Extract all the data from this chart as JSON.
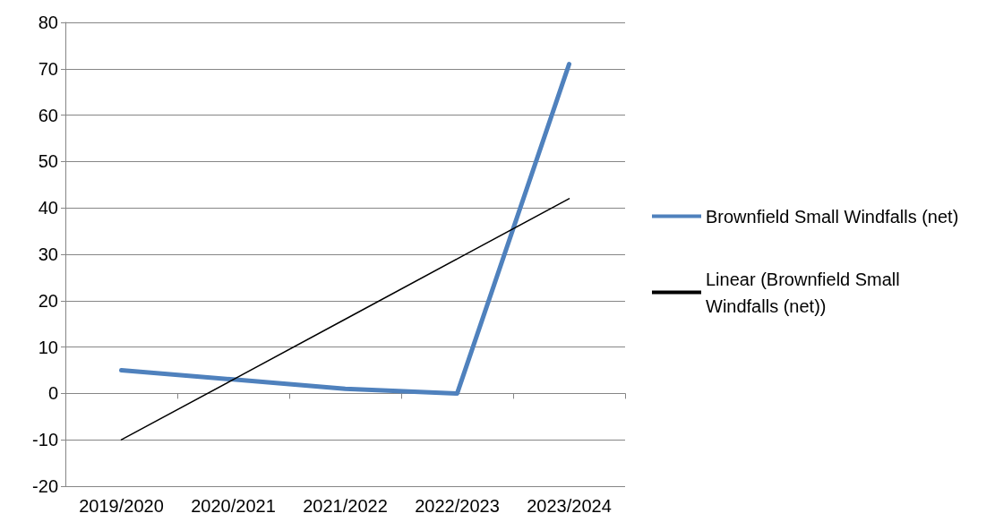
{
  "chart_data": {
    "type": "line",
    "categories": [
      "2019/2020",
      "2020/2021",
      "2021/2022",
      "2022/2023",
      "2023/2024"
    ],
    "series": [
      {
        "name": "Brownfield Small Windfalls (net)",
        "color": "#4f81bd",
        "values": [
          5,
          3,
          1,
          0,
          71
        ]
      },
      {
        "name": "Linear (Brownfield Small Windfalls (net))",
        "color": "#000000",
        "values": [
          -10,
          3,
          16,
          29,
          42
        ]
      }
    ],
    "ylim": [
      -20,
      80
    ],
    "yticks": [
      -20,
      -10,
      0,
      10,
      20,
      30,
      40,
      50,
      60,
      70,
      80
    ],
    "grid": "y",
    "legend": "right",
    "marker": "none",
    "line_style": "solid"
  }
}
